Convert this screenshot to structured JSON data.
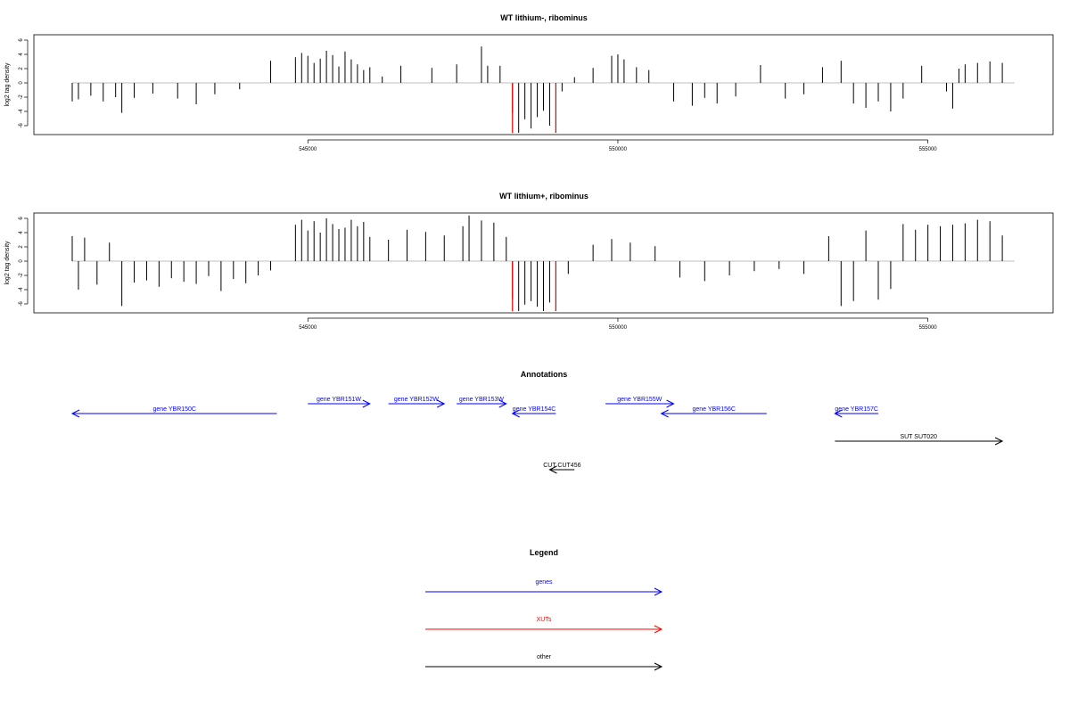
{
  "figure": {
    "panels": [
      {
        "title": "WT lithium-, ribominus",
        "ylabel": "log2 tag density"
      },
      {
        "title": "WT lithium+, ribominus",
        "ylabel": "log2 tag density"
      }
    ],
    "annotations_title": "Annotations",
    "legend_title": "Legend"
  },
  "chart_data": [
    {
      "type": "bar",
      "title": "WT lithium-, ribominus",
      "ylabel": "log2 tag density",
      "xlabel": "",
      "xlim": [
        541200,
        556400
      ],
      "ylim": [
        -7,
        7
      ],
      "xticks": [
        545000,
        550000,
        555000
      ],
      "xtick_labels": [
        "545000",
        "550000",
        "555000"
      ],
      "yticks": [
        -6,
        -4,
        -2,
        0,
        2,
        4,
        6
      ],
      "ytick_labels": [
        "-6",
        "-4",
        "-2",
        "0",
        "2",
        "4",
        "6"
      ],
      "x": [
        541200,
        541300,
        541500,
        541700,
        541900,
        542000,
        542200,
        542500,
        542900,
        543200,
        543500,
        543900,
        544400,
        544800,
        544900,
        545000,
        545100,
        545200,
        545300,
        545400,
        545500,
        545600,
        545700,
        545800,
        545900,
        546000,
        546200,
        546500,
        547000,
        547400,
        547800,
        547900,
        548100,
        548300,
        548400,
        548500,
        548600,
        548700,
        548800,
        548900,
        549000,
        549100,
        549300,
        549600,
        549900,
        550000,
        550100,
        550300,
        550500,
        550900,
        551200,
        551400,
        551600,
        551900,
        552300,
        552700,
        553000,
        553300,
        553600,
        553800,
        554000,
        554200,
        554400,
        554600,
        554900,
        555300,
        555400,
        555500,
        555600,
        555800,
        556000,
        556200
      ],
      "values": [
        -2.6,
        -2.3,
        -1.8,
        -2.6,
        -2.0,
        -4.2,
        -2.1,
        -1.5,
        -2.2,
        -3.0,
        -1.6,
        -0.9,
        3.1,
        3.6,
        4.2,
        3.8,
        2.8,
        3.4,
        4.5,
        3.9,
        2.3,
        4.4,
        3.3,
        2.6,
        1.8,
        2.2,
        0.9,
        2.4,
        2.1,
        2.6,
        5.1,
        2.4,
        2.4,
        -4.2,
        -7.0,
        -5.1,
        -6.4,
        -4.8,
        -3.9,
        -6.0,
        -7.0,
        -1.2,
        0.8,
        2.1,
        3.8,
        4.0,
        3.3,
        2.2,
        1.8,
        -2.6,
        -3.2,
        -2.1,
        -2.9,
        -1.9,
        2.5,
        -2.2,
        -1.6,
        2.2,
        3.1,
        -2.9,
        -3.5,
        -2.6,
        -4.0,
        -2.2,
        2.4,
        -1.2,
        -3.6,
        2.0,
        2.6,
        2.8,
        3.0,
        2.8
      ],
      "highlight_x": [
        548300,
        549000
      ],
      "highlight_values": [
        -7.0,
        -7.0
      ],
      "highlight_color": "#ff0000"
    },
    {
      "type": "bar",
      "title": "WT lithium+, ribominus",
      "ylabel": "log2 tag density",
      "xlabel": "",
      "xlim": [
        541200,
        556400
      ],
      "ylim": [
        -7,
        7
      ],
      "xticks": [
        545000,
        550000,
        555000
      ],
      "xtick_labels": [
        "545000",
        "550000",
        "555000"
      ],
      "yticks": [
        -6,
        -4,
        -2,
        0,
        2,
        4,
        6
      ],
      "ytick_labels": [
        "-6",
        "-4",
        "-2",
        "0",
        "2",
        "4",
        "6"
      ],
      "x": [
        541200,
        541300,
        541400,
        541600,
        541800,
        542000,
        542200,
        542400,
        542600,
        542800,
        543000,
        543200,
        543400,
        543600,
        543800,
        544000,
        544200,
        544400,
        544800,
        544900,
        545000,
        545100,
        545200,
        545300,
        545400,
        545500,
        545600,
        545700,
        545800,
        545900,
        546000,
        546300,
        546600,
        546900,
        547200,
        547500,
        547600,
        547800,
        548000,
        548200,
        548300,
        548400,
        548500,
        548600,
        548700,
        548800,
        548900,
        549000,
        549200,
        549600,
        549900,
        550200,
        550600,
        551000,
        551400,
        551800,
        552200,
        552600,
        553000,
        553400,
        553600,
        553800,
        554000,
        554200,
        554400,
        554600,
        554800,
        555000,
        555200,
        555400,
        555600,
        555800,
        556000,
        556200
      ],
      "values": [
        3.5,
        -4.0,
        3.3,
        -3.3,
        2.6,
        -6.3,
        -3.0,
        -2.7,
        -3.6,
        -2.4,
        -2.9,
        -3.2,
        -2.1,
        -4.2,
        -2.5,
        -3.1,
        -2.0,
        -1.3,
        5.1,
        5.8,
        4.3,
        5.6,
        4.0,
        6.0,
        5.2,
        4.5,
        4.7,
        5.8,
        4.9,
        5.5,
        3.4,
        3.0,
        4.4,
        4.1,
        3.6,
        4.9,
        6.4,
        5.7,
        5.4,
        3.4,
        -5.3,
        -7.0,
        -6.1,
        -5.6,
        -6.4,
        -7.0,
        -5.8,
        -7.0,
        -1.8,
        2.3,
        3.1,
        2.6,
        2.1,
        -2.3,
        -2.8,
        -2.0,
        -1.4,
        -1.1,
        -1.8,
        3.5,
        -6.3,
        -5.6,
        4.3,
        -5.4,
        -3.9,
        5.2,
        4.4,
        5.1,
        4.9,
        5.1,
        5.3,
        5.8,
        5.6,
        3.6
      ],
      "highlight_x": [
        548300,
        549000
      ],
      "highlight_values": [
        -7.0,
        -7.0
      ],
      "highlight_color": "#ff0000"
    }
  ],
  "annotations": [
    {
      "label": "gene YBR150C",
      "start": 544500,
      "end": 541200,
      "row": 1,
      "color": "#0000ff"
    },
    {
      "label": "gene YBR151W",
      "start": 545000,
      "end": 546000,
      "row": 0,
      "color": "#0000ff"
    },
    {
      "label": "gene YBR152W",
      "start": 546300,
      "end": 547200,
      "row": 0,
      "color": "#0000ff"
    },
    {
      "label": "gene YBR153W",
      "start": 547400,
      "end": 548200,
      "row": 0,
      "color": "#0000ff"
    },
    {
      "label": "gene YBR154C",
      "start": 549000,
      "end": 548300,
      "row": 1,
      "color": "#0000ff"
    },
    {
      "label": "gene YBR155W",
      "start": 549800,
      "end": 550900,
      "row": 0,
      "color": "#0000ff"
    },
    {
      "label": "gene YBR156C",
      "start": 552400,
      "end": 550700,
      "row": 1,
      "color": "#0000ff"
    },
    {
      "label": "gene YBR157C",
      "start": 554200,
      "end": 553500,
      "row": 1,
      "color": "#0000ff"
    },
    {
      "label": "SUT SUT020",
      "start": 553500,
      "end": 556200,
      "row": 2,
      "color": "#000000"
    },
    {
      "label": "CUT CUT456",
      "start": 549300,
      "end": 548900,
      "row": 3,
      "color": "#000000"
    }
  ],
  "legend": [
    {
      "label": "genes",
      "color": "#0000ff"
    },
    {
      "label": "XUTs",
      "color": "#ff0000"
    },
    {
      "label": "other",
      "color": "#000000"
    }
  ]
}
